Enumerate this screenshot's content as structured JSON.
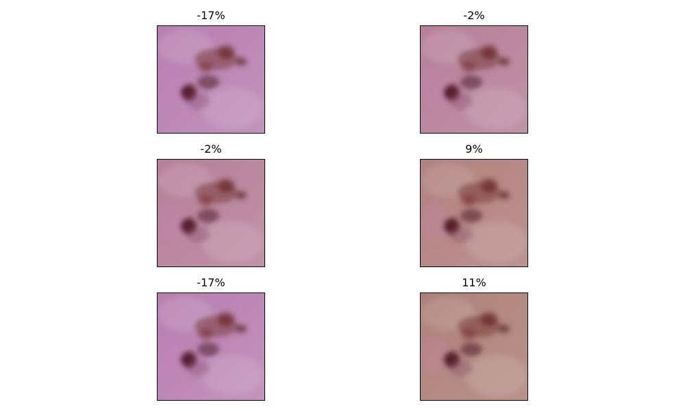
{
  "figure": {
    "panels": [
      {
        "title": "-17%",
        "tint": "#b77fb0"
      },
      {
        "title": "-2%",
        "tint": "#b57f98"
      },
      {
        "title": "-2%",
        "tint": "#b57f98"
      },
      {
        "title": "9%",
        "tint": "#b0807e"
      },
      {
        "title": "-17%",
        "tint": "#b77fb0"
      },
      {
        "title": "11%",
        "tint": "#ad8078"
      }
    ]
  }
}
